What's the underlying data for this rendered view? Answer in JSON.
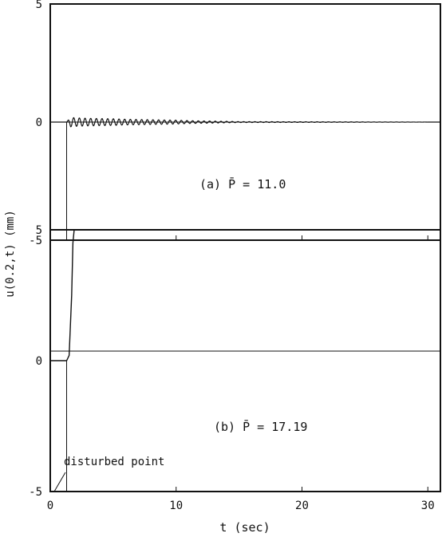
{
  "y_axis_label": "u(0.2,t)  (mm)",
  "x_axis_label": "t (sec)",
  "annotation": "disturbed point",
  "colors": {
    "ink": "#111111",
    "background": "#ffffff"
  },
  "chart_data": [
    {
      "type": "line",
      "panel_label": "(a) P̄ = 11.0",
      "xlim": [
        0,
        31
      ],
      "ylim": [
        -5,
        5
      ],
      "x_ticks": [
        "0",
        "10",
        "20",
        "30"
      ],
      "y_ticks": [
        "5",
        "0",
        "-5"
      ],
      "x_tick_values": [
        0,
        10,
        20,
        30
      ],
      "y_tick_values": [
        5,
        0,
        -5
      ],
      "grid": false,
      "series": [
        {
          "description": "damped oscillation about 0 after disturbance",
          "x": [
            0,
            1.3,
            1.6,
            2.0,
            3.0,
            4.0,
            5.0,
            6.0,
            7.0,
            8.0,
            9.0,
            10.0,
            11.0,
            12.0,
            13.0,
            14.0,
            15.0,
            31.0
          ],
          "y": [
            0,
            0,
            0.2,
            0.18,
            0.16,
            0.15,
            0.14,
            0.12,
            0.11,
            0.1,
            0.09,
            0.08,
            0.06,
            0.05,
            0.04,
            0.03,
            0.02,
            0.0
          ],
          "oscillation_period": 0.45
        }
      ]
    },
    {
      "type": "line",
      "panel_label": "(b) P̄ = 17.19",
      "xlim": [
        0,
        31
      ],
      "ylim": [
        -5,
        5
      ],
      "x_ticks": [
        "0",
        "10",
        "20",
        "30"
      ],
      "y_ticks": [
        "5",
        "0",
        "-5"
      ],
      "x_tick_values": [
        0,
        10,
        20,
        30
      ],
      "y_tick_values": [
        5,
        0,
        -5
      ],
      "grid": false,
      "series": [
        {
          "description": "divergence to +5 mm after disturbance",
          "x": [
            0,
            1.3,
            1.5,
            1.7,
            1.8,
            1.9,
            2.0,
            31.0
          ],
          "y": [
            0,
            0,
            0.2,
            2.5,
            4.5,
            5.0,
            5.0,
            5.0
          ]
        }
      ],
      "annotation_x": 1.3
    }
  ]
}
